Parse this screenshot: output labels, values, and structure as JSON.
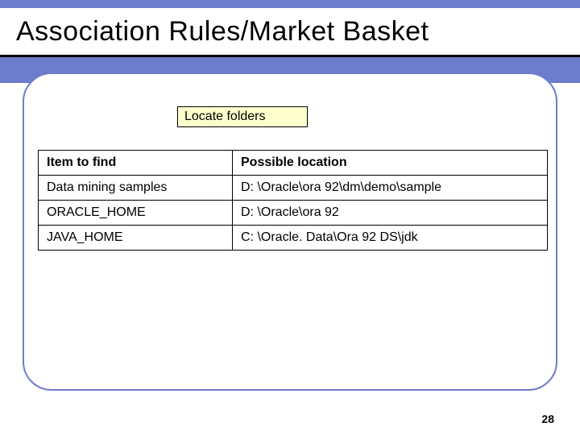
{
  "title": "Association Rules/Market Basket",
  "locate_label": "Locate folders",
  "table": {
    "header_left": "Item to find",
    "header_right": "Possible location",
    "rows": [
      {
        "left": "Data mining samples",
        "right": "D: \\Oracle\\ora 92\\dm\\demo\\sample"
      },
      {
        "left": "ORACLE_HOME",
        "right": "D: \\Oracle\\ora 92"
      },
      {
        "left": "JAVA_HOME",
        "right": "C: \\Oracle. Data\\Ora 92 DS\\jdk"
      }
    ]
  },
  "page_number": "28",
  "colors": {
    "accent": "#6e7dcb",
    "locate_bg": "#ffffcc",
    "text": "#000000",
    "bg": "#ffffff"
  }
}
